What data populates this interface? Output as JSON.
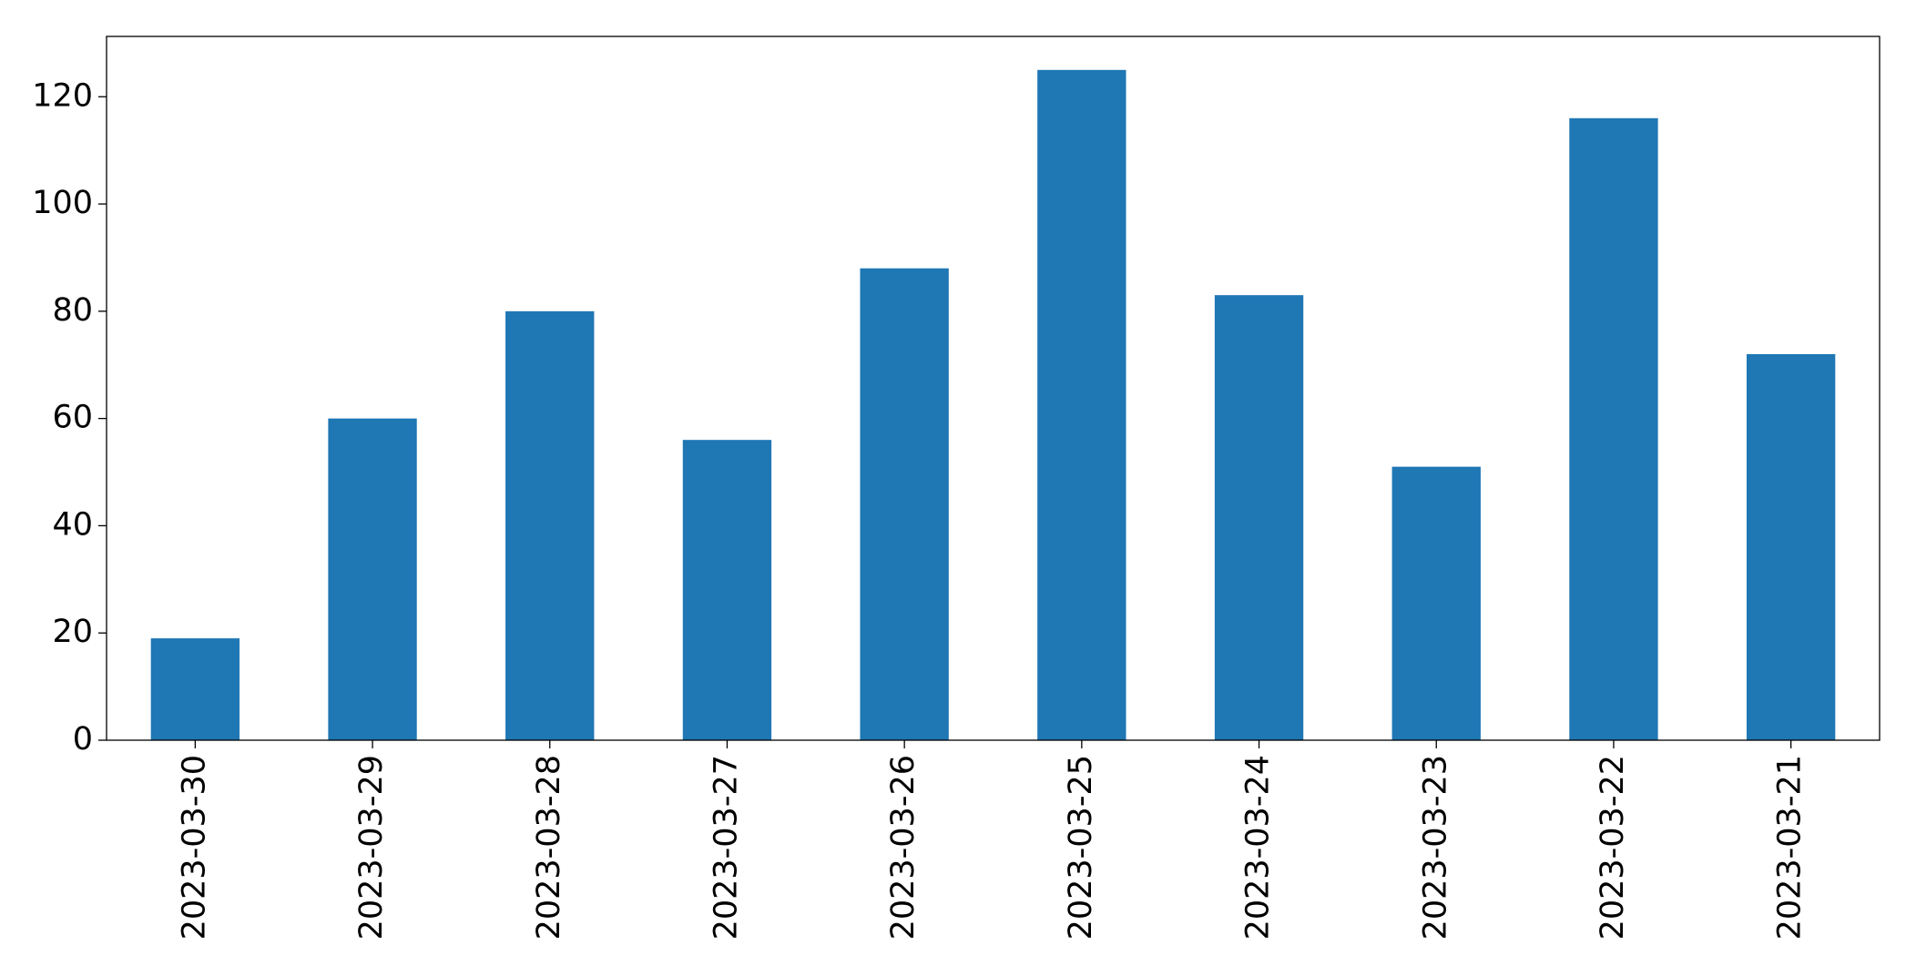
{
  "chart_data": {
    "type": "bar",
    "categories": [
      "2023-03-30",
      "2023-03-29",
      "2023-03-28",
      "2023-03-27",
      "2023-03-26",
      "2023-03-25",
      "2023-03-24",
      "2023-03-23",
      "2023-03-22",
      "2023-03-21"
    ],
    "values": [
      19,
      60,
      80,
      56,
      88,
      125,
      83,
      51,
      116,
      72
    ],
    "color": "#1f77b4",
    "ylim": [
      0,
      131.25
    ],
    "yticks": [
      0,
      20,
      40,
      60,
      80,
      100,
      120
    ],
    "grid": false
  }
}
